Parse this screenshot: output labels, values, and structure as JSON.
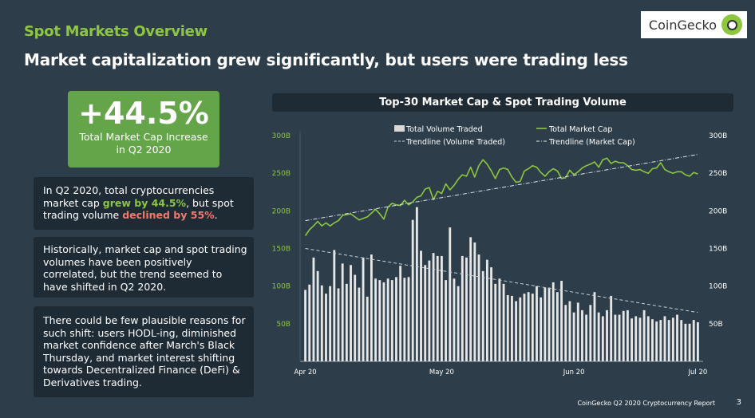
{
  "header": {
    "section_title": "Spot Markets Overview",
    "headline": "Market capitalization grew significantly, but users were trading less",
    "brand": "CoinGecko"
  },
  "stat": {
    "value": "+44.5%",
    "label_line1": "Total Market Cap Increase",
    "label_line2": "in Q2 2020"
  },
  "cards": {
    "card1": {
      "t1": "In Q2 2020, total cryptocurrencies market cap ",
      "h1": "grew by 44.5%",
      "t2": ", but spot trading volume ",
      "h2": "declined by 55%",
      "t3": "."
    },
    "card2": "Historically, market cap and spot trading volumes have been positively correlated, but the trend seemed to have shifted in Q2 2020.",
    "card3": "There could be few plausible reasons for such shift: users HODL-ing, diminished market confidence after March's Black Thursday, and market interest shifting towards Decentralized Finance (DeFi) & Derivatives trading."
  },
  "footer": {
    "report": "CoinGecko Q2 2020 Cryptocurrency Report",
    "page": "3"
  },
  "colors": {
    "background": "#2d3e4a",
    "accent_green": "#8dc63f",
    "stat_box": "#63a548",
    "card": "#1e2b34",
    "bar": "#e6e6e6",
    "decline_red": "#ef7b70"
  },
  "chart_data": {
    "type": "bar",
    "title": "Top-30 Market Cap & Spot Trading Volume",
    "x_tick_labels": [
      "Apr 20",
      "May 20",
      "Jun 20",
      "Jul 20"
    ],
    "y_tick_labels_left": [
      "50B",
      "100B",
      "150B",
      "200B",
      "250B",
      "300B"
    ],
    "y_tick_labels_right": [
      "50B",
      "100B",
      "150B",
      "200B",
      "250B",
      "300B"
    ],
    "ylim": [
      0,
      300
    ],
    "legend": {
      "volume": "Total Volume Traded",
      "market_cap": "Total Market Cap",
      "volume_trend": "Trendline (Volume Traded)",
      "market_cap_trend": "Trendline (Market Cap)"
    },
    "volume": [
      95,
      102,
      138,
      120,
      101,
      90,
      100,
      148,
      97,
      130,
      103,
      128,
      115,
      98,
      138,
      86,
      142,
      110,
      108,
      105,
      110,
      108,
      112,
      127,
      111,
      112,
      188,
      205,
      147,
      128,
      134,
      144,
      140,
      140,
      108,
      178,
      110,
      100,
      140,
      138,
      165,
      158,
      142,
      120,
      135,
      125,
      103,
      110,
      103,
      88,
      87,
      80,
      85,
      90,
      92,
      90,
      100,
      85,
      98,
      98,
      105,
      92,
      107,
      75,
      80,
      65,
      78,
      68,
      62,
      75,
      92,
      65,
      60,
      68,
      87,
      62,
      62,
      67,
      68,
      57,
      60,
      58,
      68,
      60,
      56,
      53,
      55,
      60,
      55,
      58,
      62,
      55,
      50,
      50,
      55,
      52
    ],
    "market_cap": [
      167,
      175,
      180,
      186,
      180,
      184,
      180,
      184,
      187,
      194,
      195,
      196,
      192,
      188,
      190,
      192,
      197,
      202,
      196,
      189,
      205,
      210,
      208,
      207,
      214,
      208,
      212,
      218,
      220,
      229,
      231,
      215,
      226,
      223,
      236,
      228,
      234,
      242,
      248,
      246,
      258,
      245,
      260,
      268,
      262,
      253,
      243,
      255,
      257,
      255,
      245,
      238,
      239,
      253,
      256,
      260,
      258,
      251,
      246,
      252,
      256,
      253,
      243,
      244,
      254,
      248,
      252,
      257,
      260,
      262,
      265,
      258,
      268,
      270,
      263,
      266,
      264,
      264,
      260,
      255,
      254,
      255,
      252,
      250,
      256,
      257,
      264,
      255,
      252,
      250,
      252,
      252,
      248,
      246,
      251,
      249
    ],
    "volume_trend": [
      150,
      65
    ],
    "market_cap_trend": [
      187,
      275
    ]
  }
}
